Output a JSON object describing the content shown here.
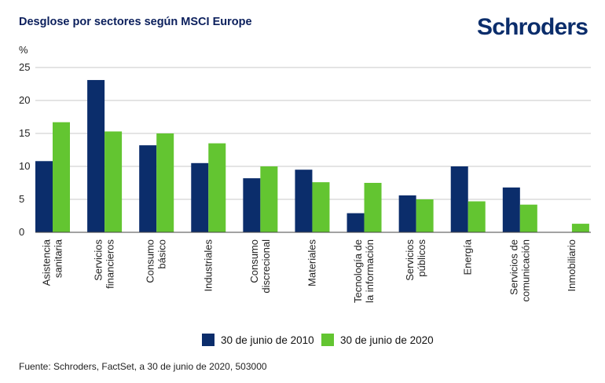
{
  "header": {
    "title": "Desglose por sectores según MSCI Europe",
    "brand": "Schroders"
  },
  "footer": {
    "source": "Fuente: Schroders, FactSet, a 30 de junio de 2020, 503000"
  },
  "colors": {
    "series_2010": "#0b2d6b",
    "series_2020": "#63c531",
    "gridline": "#c8c8c8",
    "axis": "#444444"
  },
  "chart_data": {
    "type": "bar",
    "title": "Desglose por sectores según MSCI Europe",
    "xlabel": "",
    "ylabel": "%",
    "ylim": [
      0,
      25
    ],
    "yticks": [
      0,
      5,
      10,
      15,
      20,
      25
    ],
    "grid": true,
    "legend_position": "bottom-center",
    "categories": [
      [
        "Asistencia",
        "sanitaria"
      ],
      [
        "Servicios",
        "financieros"
      ],
      [
        "Consumo",
        "básico"
      ],
      [
        "Industriales"
      ],
      [
        "Consumo",
        "discrecional"
      ],
      [
        "Materiales"
      ],
      [
        "Tecnología de",
        "la información"
      ],
      [
        "Servicios",
        "públicos"
      ],
      [
        "Energía"
      ],
      [
        "Servicios de",
        "comunicación"
      ],
      [
        "Inmobiliario"
      ]
    ],
    "series": [
      {
        "name": "30 de junio de 2010",
        "values": [
          10.8,
          23.1,
          13.2,
          10.5,
          8.2,
          9.5,
          2.9,
          5.6,
          10.0,
          6.8,
          0
        ]
      },
      {
        "name": "30 de junio de 2020",
        "values": [
          16.7,
          15.3,
          15.0,
          13.5,
          10.0,
          7.6,
          7.5,
          5.0,
          4.7,
          4.2,
          1.3
        ]
      }
    ]
  }
}
